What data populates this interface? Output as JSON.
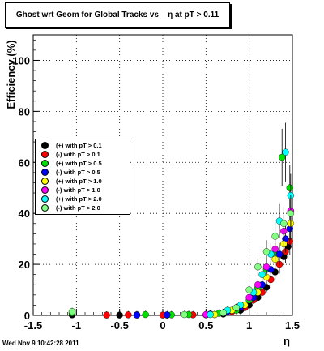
{
  "title": "Ghost wrt Geom for Global Tracks vs    η at pT > 0.11",
  "footer_timestamp": "Wed Nov  9 10:42:28 2011",
  "chart_data": {
    "type": "scatter",
    "title": "Ghost wrt Geom for Global Tracks vs    η at pT > 0.11",
    "xlabel": "η",
    "ylabel": "Efficiency (%)",
    "xlim": [
      -1.5,
      1.5
    ],
    "ylim": [
      0,
      110
    ],
    "x_ticks": [
      "-1.5",
      "-1",
      "-0.5",
      "0",
      "0.5",
      "1",
      "1.5"
    ],
    "y_ticks": [
      "0",
      "20",
      "40",
      "60",
      "80",
      "100"
    ],
    "grid": true,
    "legend_position": "left-middle",
    "series": [
      {
        "name": "(+) with pT > 0.1",
        "color": "#000000",
        "points": [
          [
            -1.05,
            0.2
          ],
          [
            -0.5,
            0.1
          ],
          [
            -0.3,
            0.2
          ],
          [
            0.05,
            0.1
          ],
          [
            0.5,
            0.2
          ],
          [
            0.7,
            0.5
          ],
          [
            0.9,
            2
          ],
          [
            1.0,
            4
          ],
          [
            1.1,
            7
          ],
          [
            1.2,
            11
          ],
          [
            1.3,
            17
          ],
          [
            1.4,
            23
          ],
          [
            1.45,
            27
          ]
        ]
      },
      {
        "name": "(-) with pT > 0.1",
        "color": "#ff0000",
        "points": [
          [
            -0.65,
            0.1
          ],
          [
            -0.4,
            0.2
          ],
          [
            0.0,
            0.1
          ],
          [
            0.35,
            0.2
          ],
          [
            0.6,
            0.3
          ],
          [
            0.8,
            1.5
          ],
          [
            0.95,
            3
          ],
          [
            1.05,
            6
          ],
          [
            1.15,
            9
          ],
          [
            1.25,
            14
          ],
          [
            1.35,
            20
          ],
          [
            1.42,
            25
          ],
          [
            1.47,
            29
          ]
        ]
      },
      {
        "name": "(+) with pT > 0.5",
        "color": "#00e000",
        "points": [
          [
            -1.05,
            1.0
          ],
          [
            -0.2,
            0.3
          ],
          [
            0.1,
            0.2
          ],
          [
            0.3,
            0.3
          ],
          [
            0.65,
            0.8
          ],
          [
            0.85,
            2
          ],
          [
            1.0,
            6
          ],
          [
            1.1,
            11
          ],
          [
            1.2,
            18
          ],
          [
            1.3,
            24
          ],
          [
            1.38,
            62
          ],
          [
            1.47,
            50
          ]
        ]
      },
      {
        "name": "(-) with pT > 0.5",
        "color": "#0000ff",
        "points": [
          [
            -0.3,
            0.1
          ],
          [
            0.05,
            0.2
          ],
          [
            0.55,
            0.5
          ],
          [
            0.75,
            1.5
          ],
          [
            0.9,
            3
          ],
          [
            1.05,
            7
          ],
          [
            1.15,
            12
          ],
          [
            1.25,
            18
          ],
          [
            1.35,
            24
          ],
          [
            1.42,
            30
          ],
          [
            1.47,
            34
          ]
        ]
      },
      {
        "name": "(+) with pT > 1.0",
        "color": "#ffff00",
        "points": [
          [
            0.6,
            0.3
          ],
          [
            0.8,
            2
          ],
          [
            0.95,
            4
          ],
          [
            1.1,
            9
          ],
          [
            1.2,
            15
          ],
          [
            1.3,
            22
          ],
          [
            1.4,
            28
          ],
          [
            1.48,
            36
          ]
        ]
      },
      {
        "name": "(-) with pT > 1.0",
        "color": "#ff00ff",
        "points": [
          [
            0.5,
            0.3
          ],
          [
            0.7,
            1.0
          ],
          [
            0.85,
            3
          ],
          [
            1.0,
            7
          ],
          [
            1.1,
            12
          ],
          [
            1.2,
            19
          ],
          [
            1.3,
            26
          ],
          [
            1.4,
            33
          ],
          [
            1.48,
            41
          ]
        ]
      },
      {
        "name": "(+) with pT > 2.0",
        "color": "#00ffff",
        "points": [
          [
            0.55,
            0.3
          ],
          [
            0.75,
            2
          ],
          [
            0.9,
            4
          ],
          [
            1.05,
            9
          ],
          [
            1.15,
            16
          ],
          [
            1.25,
            24
          ],
          [
            1.35,
            37
          ],
          [
            1.42,
            64
          ],
          [
            1.48,
            47
          ]
        ]
      },
      {
        "name": "(-) with pT > 2.0",
        "color": "#80ff80",
        "points": [
          [
            -1.05,
            1.5
          ],
          [
            0.25,
            0.3
          ],
          [
            0.7,
            1
          ],
          [
            0.85,
            3
          ],
          [
            1.0,
            10
          ],
          [
            1.1,
            19
          ],
          [
            1.2,
            25
          ],
          [
            1.3,
            31
          ],
          [
            1.4,
            36
          ],
          [
            1.48,
            40
          ]
        ]
      }
    ]
  }
}
